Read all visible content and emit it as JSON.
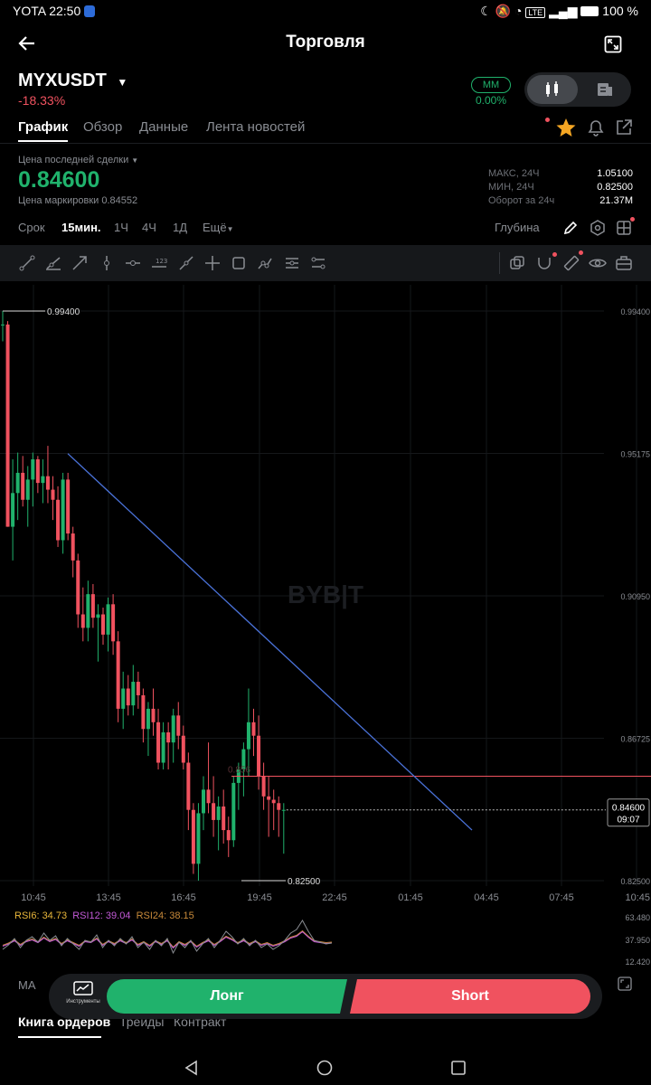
{
  "status_bar": {
    "carrier_time": "YOTA 22:50",
    "battery": "100 %",
    "network": "LTE"
  },
  "header": {
    "title": "Торговля"
  },
  "instrument": {
    "symbol": "MYXUSDT",
    "change": "-18.33%",
    "mm_label": "MM",
    "mm_value": "0.00%"
  },
  "tabs": [
    "График",
    "Обзор",
    "Данные",
    "Лента новостей"
  ],
  "price": {
    "last_label": "Цена последней сделки",
    "last_price": "0.84600",
    "mark_label": "Цена маркировки 0.84552",
    "stats": [
      {
        "label": "МАКС, 24Ч",
        "value": "1.05100"
      },
      {
        "label": "МИН, 24Ч",
        "value": "0.82500"
      },
      {
        "label": "Оборот за 24ч",
        "value": "21.37M"
      }
    ]
  },
  "timeframes": {
    "label": "Срок",
    "items": [
      "15мин.",
      "1Ч",
      "4Ч",
      "1Д",
      "Ещё"
    ],
    "selected": "15мин.",
    "depth": "Глубина"
  },
  "chart_data": {
    "type": "candlestick",
    "watermark": "BYB|T",
    "y_ticks": [
      "0.99400",
      "0.95175",
      "0.90950",
      "0.86725",
      "0.82500"
    ],
    "ylim": [
      0.825,
      0.994
    ],
    "x_ticks": [
      "10:45",
      "13:45",
      "16:45",
      "19:45",
      "22:45",
      "01:45",
      "04:45",
      "07:45",
      "10:45"
    ],
    "high_label": "0.99400",
    "low_label": "0.82500",
    "current_price": "0.84600",
    "countdown": "09:07",
    "ghost_label": "0.856",
    "colors": {
      "up": "#20b26c",
      "down": "#f0525f",
      "trendline": "#4a72d8",
      "hline": "#f0525f"
    },
    "trendline": [
      {
        "time": "12:30",
        "price": 0.9517
      },
      {
        "time": "04:15",
        "price": 0.84
      }
    ],
    "horizontal_line": 0.856,
    "candles": [
      {
        "o": 0.99,
        "h": 0.994,
        "l": 0.985,
        "c": 0.99
      },
      {
        "o": 0.99,
        "h": 0.991,
        "l": 0.93,
        "c": 0.93
      },
      {
        "o": 0.93,
        "h": 0.95,
        "l": 0.92,
        "c": 0.94
      },
      {
        "o": 0.94,
        "h": 0.952,
        "l": 0.932,
        "c": 0.946
      },
      {
        "o": 0.946,
        "h": 0.951,
        "l": 0.936,
        "c": 0.938
      },
      {
        "o": 0.938,
        "h": 0.948,
        "l": 0.93,
        "c": 0.944
      },
      {
        "o": 0.944,
        "h": 0.952,
        "l": 0.936,
        "c": 0.95
      },
      {
        "o": 0.95,
        "h": 0.951,
        "l": 0.94,
        "c": 0.943
      },
      {
        "o": 0.943,
        "h": 0.95,
        "l": 0.937,
        "c": 0.945
      },
      {
        "o": 0.945,
        "h": 0.954,
        "l": 0.937,
        "c": 0.941
      },
      {
        "o": 0.941,
        "h": 0.945,
        "l": 0.932,
        "c": 0.938
      },
      {
        "o": 0.938,
        "h": 0.942,
        "l": 0.924,
        "c": 0.926
      },
      {
        "o": 0.926,
        "h": 0.946,
        "l": 0.922,
        "c": 0.944
      },
      {
        "o": 0.944,
        "h": 0.946,
        "l": 0.926,
        "c": 0.928
      },
      {
        "o": 0.928,
        "h": 0.93,
        "l": 0.915,
        "c": 0.92
      },
      {
        "o": 0.92,
        "h": 0.922,
        "l": 0.9,
        "c": 0.904
      },
      {
        "o": 0.904,
        "h": 0.912,
        "l": 0.896,
        "c": 0.9
      },
      {
        "o": 0.9,
        "h": 0.914,
        "l": 0.896,
        "c": 0.91
      },
      {
        "o": 0.91,
        "h": 0.913,
        "l": 0.9,
        "c": 0.903
      },
      {
        "o": 0.903,
        "h": 0.907,
        "l": 0.89,
        "c": 0.904
      },
      {
        "o": 0.904,
        "h": 0.906,
        "l": 0.895,
        "c": 0.898
      },
      {
        "o": 0.898,
        "h": 0.909,
        "l": 0.893,
        "c": 0.907
      },
      {
        "o": 0.907,
        "h": 0.91,
        "l": 0.892,
        "c": 0.896
      },
      {
        "o": 0.896,
        "h": 0.899,
        "l": 0.872,
        "c": 0.876
      },
      {
        "o": 0.876,
        "h": 0.887,
        "l": 0.87,
        "c": 0.882
      },
      {
        "o": 0.882,
        "h": 0.886,
        "l": 0.874,
        "c": 0.877
      },
      {
        "o": 0.877,
        "h": 0.889,
        "l": 0.874,
        "c": 0.884
      },
      {
        "o": 0.884,
        "h": 0.887,
        "l": 0.876,
        "c": 0.88
      },
      {
        "o": 0.88,
        "h": 0.882,
        "l": 0.866,
        "c": 0.87
      },
      {
        "o": 0.87,
        "h": 0.878,
        "l": 0.862,
        "c": 0.876
      },
      {
        "o": 0.876,
        "h": 0.882,
        "l": 0.868,
        "c": 0.872
      },
      {
        "o": 0.872,
        "h": 0.876,
        "l": 0.858,
        "c": 0.86
      },
      {
        "o": 0.86,
        "h": 0.872,
        "l": 0.858,
        "c": 0.869
      },
      {
        "o": 0.869,
        "h": 0.872,
        "l": 0.858,
        "c": 0.866
      },
      {
        "o": 0.866,
        "h": 0.876,
        "l": 0.86,
        "c": 0.874
      },
      {
        "o": 0.874,
        "h": 0.878,
        "l": 0.864,
        "c": 0.868
      },
      {
        "o": 0.868,
        "h": 0.871,
        "l": 0.858,
        "c": 0.86
      },
      {
        "o": 0.86,
        "h": 0.863,
        "l": 0.84,
        "c": 0.846
      },
      {
        "o": 0.846,
        "h": 0.848,
        "l": 0.827,
        "c": 0.83
      },
      {
        "o": 0.83,
        "h": 0.848,
        "l": 0.825,
        "c": 0.845
      },
      {
        "o": 0.845,
        "h": 0.856,
        "l": 0.84,
        "c": 0.852
      },
      {
        "o": 0.852,
        "h": 0.866,
        "l": 0.845,
        "c": 0.848
      },
      {
        "o": 0.848,
        "h": 0.856,
        "l": 0.838,
        "c": 0.843
      },
      {
        "o": 0.843,
        "h": 0.85,
        "l": 0.834,
        "c": 0.847
      },
      {
        "o": 0.847,
        "h": 0.852,
        "l": 0.836,
        "c": 0.84
      },
      {
        "o": 0.84,
        "h": 0.844,
        "l": 0.832,
        "c": 0.837
      },
      {
        "o": 0.837,
        "h": 0.856,
        "l": 0.835,
        "c": 0.854
      },
      {
        "o": 0.854,
        "h": 0.86,
        "l": 0.846,
        "c": 0.858
      },
      {
        "o": 0.858,
        "h": 0.866,
        "l": 0.85,
        "c": 0.864
      },
      {
        "o": 0.864,
        "h": 0.882,
        "l": 0.856,
        "c": 0.872
      },
      {
        "o": 0.872,
        "h": 0.876,
        "l": 0.862,
        "c": 0.868
      },
      {
        "o": 0.868,
        "h": 0.874,
        "l": 0.852,
        "c": 0.856
      },
      {
        "o": 0.856,
        "h": 0.86,
        "l": 0.846,
        "c": 0.85
      },
      {
        "o": 0.85,
        "h": 0.856,
        "l": 0.838,
        "c": 0.849
      },
      {
        "o": 0.849,
        "h": 0.852,
        "l": 0.84,
        "c": 0.848
      },
      {
        "o": 0.848,
        "h": 0.85,
        "l": 0.838,
        "c": 0.846
      },
      {
        "o": 0.846,
        "h": 0.848,
        "l": 0.833,
        "c": 0.846
      }
    ]
  },
  "rsi": {
    "rsi6": "RSI6: 34.73",
    "rsi12": "RSI12: 39.04",
    "rsi24": "RSI24: 38.15",
    "ticks": [
      "63.480",
      "37.950",
      "12.420"
    ],
    "colors": {
      "rsi6": "#e8b63a",
      "rsi12": "#c35ad8",
      "rsi24": "#c88a3a"
    }
  },
  "bottom": {
    "ma": "MA",
    "instruments_label": "Инструменты",
    "long": "Лонг",
    "short": "Short",
    "orderbook_tabs": [
      "Книга ордеров",
      "Трейды",
      "Контракт"
    ]
  }
}
